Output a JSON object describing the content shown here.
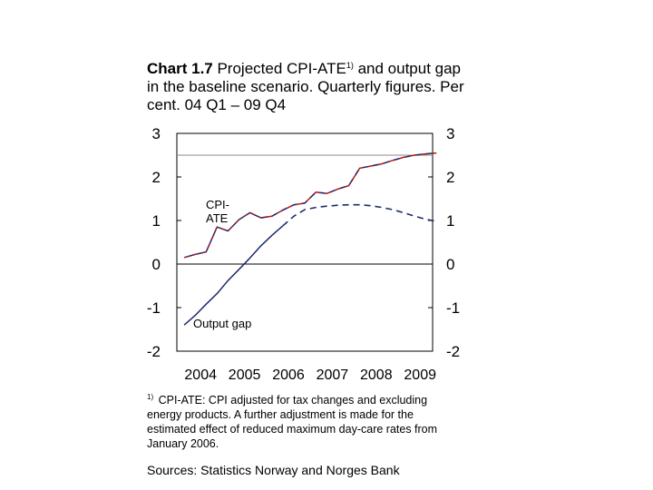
{
  "title": {
    "lead": "Chart 1.7",
    "part1": " Projected CPI-ATE",
    "sup": "1)",
    "part2": " and output gap in the baseline scenario. Quarterly figures. Per cent. 04 Q1 – 09 Q4"
  },
  "footnote": {
    "marker": "1)",
    "text": " CPI-ATE: CPI adjusted for tax changes and excluding energy products. A further adjustment is made for the estimated effect of reduced maximum day-care rates from January 2006."
  },
  "sources": "Sources: Statistics Norway and Norges Bank",
  "chart_data": {
    "type": "line",
    "x_tick_labels": [
      "2004",
      "2005",
      "2006",
      "2007",
      "2008",
      "2009"
    ],
    "y_tick_labels_left": [
      "3",
      "2",
      "1",
      "0",
      "-1",
      "-2"
    ],
    "y_tick_labels_right": [
      "3",
      "2",
      "1",
      "0",
      "-1",
      "-2"
    ],
    "ylim": [
      -2,
      3
    ],
    "xlim": [
      "2004 Q1",
      "2009 Q4"
    ],
    "annotations": [
      {
        "text": "CPI-",
        "series": "CPI-ATE"
      },
      {
        "text": "ATE",
        "series": "CPI-ATE"
      },
      {
        "text": "Output gap",
        "series": "Output gap"
      }
    ],
    "reference_lines": [
      {
        "y": 2.5,
        "color": "#888888"
      }
    ],
    "series": [
      {
        "key": "cpi",
        "color": "#1c2a6e",
        "overlay_dash_color": "#b01818",
        "projection_from": "2005 Q4",
        "points": [
          [
            "2004 Q1",
            0.15
          ],
          [
            "2004 Q2",
            0.22
          ],
          [
            "2004 Q3",
            0.28
          ],
          [
            "2004 Q4",
            0.85
          ],
          [
            "2005 Q1",
            0.76
          ],
          [
            "2005 Q2",
            1.02
          ],
          [
            "2005 Q3",
            1.18
          ],
          [
            "2005 Q4",
            1.06
          ],
          [
            "2006 Q1",
            1.1
          ],
          [
            "2006 Q2",
            1.24
          ],
          [
            "2006 Q3",
            1.36
          ],
          [
            "2006 Q4",
            1.4
          ],
          [
            "2007 Q1",
            1.65
          ],
          [
            "2007 Q2",
            1.62
          ],
          [
            "2007 Q3",
            1.72
          ],
          [
            "2007 Q4",
            1.8
          ],
          [
            "2008 Q1",
            2.2
          ],
          [
            "2008 Q2",
            2.25
          ],
          [
            "2008 Q3",
            2.3
          ],
          [
            "2008 Q4",
            2.38
          ],
          [
            "2009 Q1",
            2.45
          ],
          [
            "2009 Q2",
            2.5
          ],
          [
            "2009 Q3",
            2.53
          ],
          [
            "2009 Q4",
            2.55
          ]
        ]
      },
      {
        "key": "gap",
        "color": "#1c2a6e",
        "projection_from": "2006 Q2",
        "points": [
          [
            "2004 Q1",
            -1.4
          ],
          [
            "2004 Q2",
            -1.18
          ],
          [
            "2004 Q3",
            -0.92
          ],
          [
            "2004 Q4",
            -0.68
          ],
          [
            "2005 Q1",
            -0.38
          ],
          [
            "2005 Q2",
            -0.12
          ],
          [
            "2005 Q3",
            0.14
          ],
          [
            "2005 Q4",
            0.42
          ],
          [
            "2006 Q1",
            0.66
          ],
          [
            "2006 Q2",
            0.88
          ],
          [
            "2006 Q3",
            1.1
          ],
          [
            "2006 Q4",
            1.25
          ],
          [
            "2007 Q1",
            1.3
          ],
          [
            "2007 Q2",
            1.33
          ],
          [
            "2007 Q3",
            1.35
          ],
          [
            "2007 Q4",
            1.36
          ],
          [
            "2008 Q1",
            1.36
          ],
          [
            "2008 Q2",
            1.34
          ],
          [
            "2008 Q3",
            1.3
          ],
          [
            "2008 Q4",
            1.25
          ],
          [
            "2009 Q1",
            1.18
          ],
          [
            "2009 Q2",
            1.1
          ],
          [
            "2009 Q3",
            1.03
          ],
          [
            "2009 Q4",
            0.98
          ]
        ]
      }
    ]
  }
}
